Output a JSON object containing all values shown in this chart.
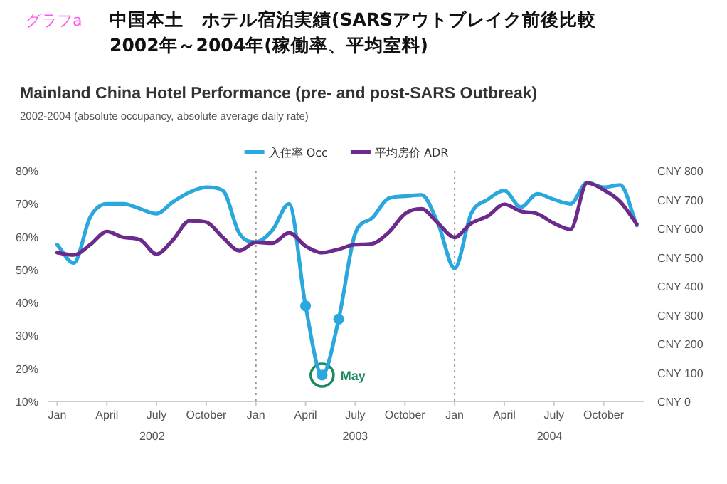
{
  "chart_data": {
    "type": "line",
    "title": "Mainland China Hotel Performance (pre- and post-SARS Outbreak)",
    "subtitle": "2002-2004 (absolute occupancy, absolute average daily rate)",
    "annotations": [
      "グラフa",
      "中国本土　ホテル宿泊実績(SARSアウトブレイク前後比較",
      "2002年～2004年(稼働率、平均室料)",
      "2002",
      "2003",
      "2004",
      {
        "text": "May",
        "x": "2003-05",
        "y": 18
      }
    ],
    "x": [
      "2002-01",
      "2002-02",
      "2002-03",
      "2002-04",
      "2002-05",
      "2002-06",
      "2002-07",
      "2002-08",
      "2002-09",
      "2002-10",
      "2002-11",
      "2002-12",
      "2003-01",
      "2003-02",
      "2003-03",
      "2003-04",
      "2003-05",
      "2003-06",
      "2003-07",
      "2003-08",
      "2003-09",
      "2003-10",
      "2003-11",
      "2003-12",
      "2004-01",
      "2004-02",
      "2004-03",
      "2004-04",
      "2004-05",
      "2004-06",
      "2004-07",
      "2004-08",
      "2004-09",
      "2004-10",
      "2004-11",
      "2004-12"
    ],
    "series": [
      {
        "name": "入住率 Occ",
        "color": "#2aa7dc",
        "values": [
          57.6,
          52,
          66,
          70,
          70,
          68.5,
          67,
          70.6,
          73.5,
          75,
          74,
          61,
          58.4,
          62,
          70,
          39,
          18,
          35,
          61,
          65.6,
          71.6,
          72.3,
          72.7,
          64,
          50.4,
          67,
          71.3,
          74,
          69,
          73,
          71.3,
          70,
          76.4,
          75,
          75.7,
          63.4
        ]
      },
      {
        "name": "平均房价 ADR",
        "color": "#6b2a8c",
        "axis": "y2",
        "values": [
          516,
          508,
          544,
          589,
          569,
          561,
          511,
          561,
          627,
          622,
          569,
          523,
          552,
          549,
          585,
          539,
          516,
          528,
          544,
          547,
          585,
          651,
          668,
          618,
          569,
          618,
          643,
          684,
          660,
          651,
          618,
          597,
          758,
          734,
          693,
          615
        ]
      },
      {
        "type": "scatter",
        "color": "#2aa7dc",
        "marker": "circle",
        "x": [
          "2003-04",
          "2003-05",
          "2003-06"
        ],
        "values": [
          39,
          18,
          35
        ]
      }
    ],
    "xlim": [
      "2001-12-15",
      "2004-12-15"
    ],
    "xticks": [
      {
        "value": "2002-01",
        "label": "Jan"
      },
      {
        "value": "2002-04",
        "label": "April"
      },
      {
        "value": "2002-07",
        "label": "July"
      },
      {
        "value": "2002-10",
        "label": "October"
      },
      {
        "value": "2003-01",
        "label": "Jan"
      },
      {
        "value": "2003-04",
        "label": "April"
      },
      {
        "value": "2003-07",
        "label": "July"
      },
      {
        "value": "2003-10",
        "label": "October"
      },
      {
        "value": "2004-01",
        "label": "Jan"
      },
      {
        "value": "2004-04",
        "label": "April"
      },
      {
        "value": "2004-07",
        "label": "July"
      },
      {
        "value": "2004-10",
        "label": "October"
      }
    ],
    "ylim": [
      10,
      80
    ],
    "yticks": [
      {
        "value": 10,
        "label": "10%"
      },
      {
        "value": 20,
        "label": "20%"
      },
      {
        "value": 30,
        "label": "30%"
      },
      {
        "value": 40,
        "label": "40%"
      },
      {
        "value": 50,
        "label": "50%"
      },
      {
        "value": 60,
        "label": "60%"
      },
      {
        "value": 70,
        "label": "70%"
      },
      {
        "value": 80,
        "label": "80%"
      }
    ],
    "y2lim": [
      0,
      800
    ],
    "y2label": "CNY",
    "y2ticks": [
      0,
      100,
      200,
      300,
      400,
      500,
      600,
      700,
      800
    ],
    "ref_lines": [
      {
        "axis": "x",
        "value": "2003-01",
        "color": "#999999",
        "line_style": "dotted"
      },
      {
        "axis": "x",
        "value": "2004-01",
        "color": "#999999",
        "line_style": "dotted"
      }
    ],
    "legend": "top"
  }
}
